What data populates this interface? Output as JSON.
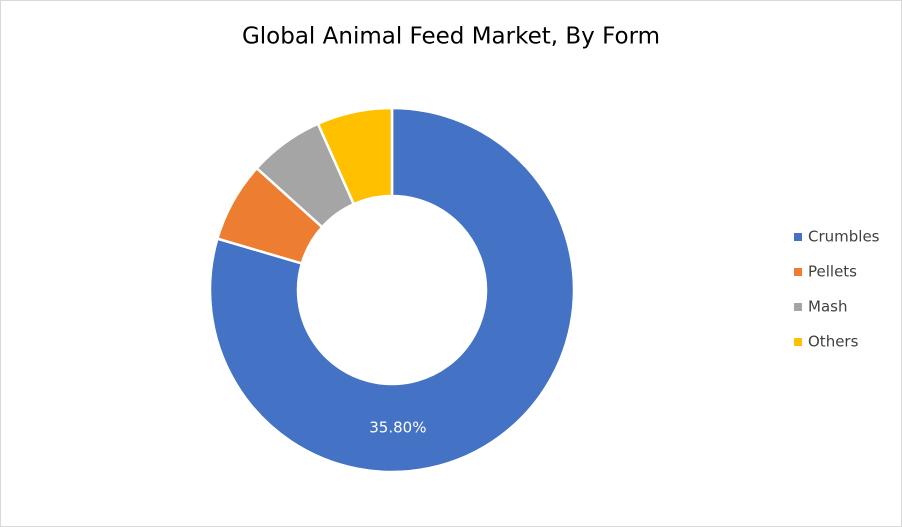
{
  "chart_data": {
    "type": "donut",
    "title": "Global Animal Feed Market, By Form",
    "categories": [
      "Crumbles",
      "Pellets",
      "Mash",
      "Others"
    ],
    "values": [
      35.8,
      3.2,
      3.0,
      3.0
    ],
    "value_labels": [
      "35.80%",
      null,
      null,
      null
    ],
    "colors": [
      "#4472c4",
      "#ed7d31",
      "#a5a5a5",
      "#ffc000"
    ],
    "legend": "right"
  }
}
